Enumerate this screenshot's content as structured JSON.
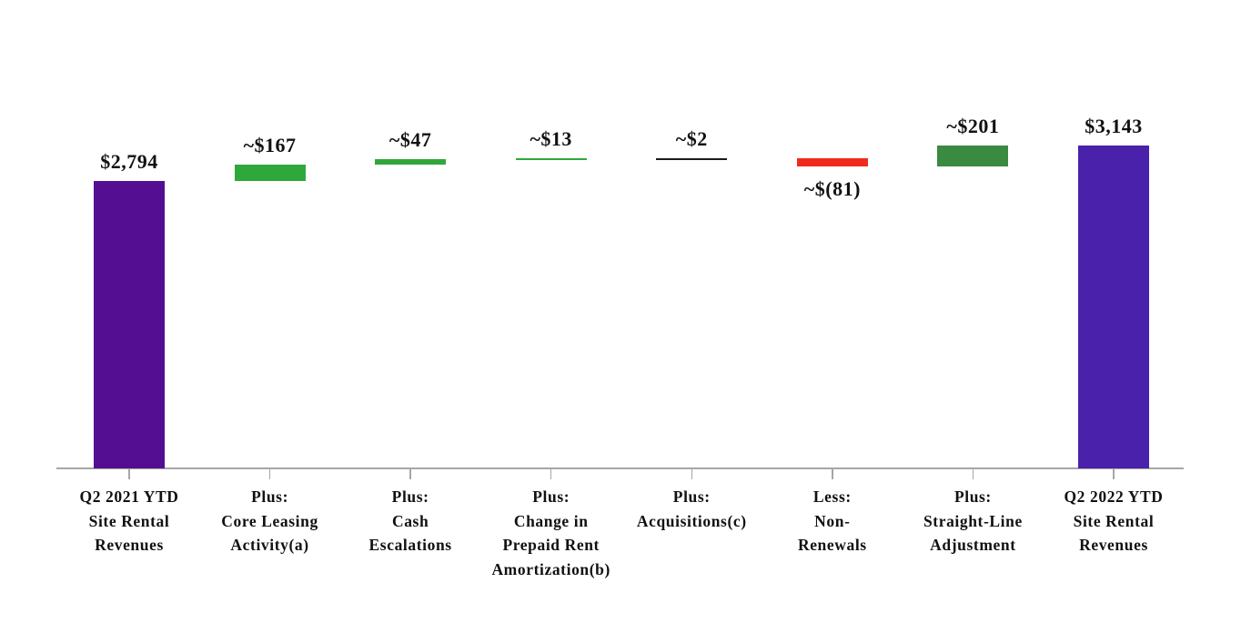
{
  "chart_data": {
    "type": "bar",
    "subtype": "waterfall",
    "title": "",
    "unit": "USD millions",
    "ylim": [
      0,
      3143
    ],
    "grid": false,
    "legend": "none",
    "axis_color": "#a6a6a6",
    "categories": [
      "Q2 2021 YTD Site Rental Revenues",
      "Plus: Core Leasing Activity(a)",
      "Plus: Cash Escalations",
      "Plus: Change in Prepaid Rent Amortization(b)",
      "Plus: Acquisitions(c)",
      "Less: Non-Renewals",
      "Plus: Straight-Line Adjustment",
      "Q2 2022 YTD Site Rental Revenues"
    ],
    "steps": [
      {
        "label_lines": [
          "Q2 2021 YTD",
          "Site Rental",
          "Revenues"
        ],
        "value": 2794,
        "display": "$2,794",
        "kind": "total",
        "color": "#530e92",
        "value_label_position": "above"
      },
      {
        "label_lines": [
          "Plus:",
          "Core Leasing",
          "Activity(a)"
        ],
        "value": 167,
        "display": "~$167",
        "kind": "increase",
        "color": "#2fa83b",
        "value_label_position": "above"
      },
      {
        "label_lines": [
          "Plus:",
          "Cash",
          "Escalations"
        ],
        "value": 47,
        "display": "~$47",
        "kind": "increase",
        "color": "#2fa83b",
        "value_label_position": "above"
      },
      {
        "label_lines": [
          "Plus:",
          "Change in",
          "Prepaid Rent",
          "Amortization(b)"
        ],
        "value": 13,
        "display": "~$13",
        "kind": "increase",
        "color": "#2fa83b",
        "value_label_position": "above"
      },
      {
        "label_lines": [
          "Plus:",
          "Acquisitions(c)"
        ],
        "value": 2,
        "display": "~$2",
        "kind": "increase",
        "color": "#1a1a1a",
        "value_label_position": "above"
      },
      {
        "label_lines": [
          "Less:",
          "Non-",
          "Renewals"
        ],
        "value": -81,
        "display": "~$(81)",
        "kind": "decrease",
        "color": "#f02b1d",
        "value_label_position": "below"
      },
      {
        "label_lines": [
          "Plus:",
          "Straight-Line",
          "Adjustment"
        ],
        "value": 201,
        "display": "~$201",
        "kind": "increase",
        "color": "#3a8a41",
        "value_label_position": "above"
      },
      {
        "label_lines": [
          "Q2 2022 YTD",
          "Site Rental",
          "Revenues"
        ],
        "value": 3143,
        "display": "$3,143",
        "kind": "total",
        "color": "#4a21aa",
        "value_label_position": "above"
      }
    ]
  }
}
